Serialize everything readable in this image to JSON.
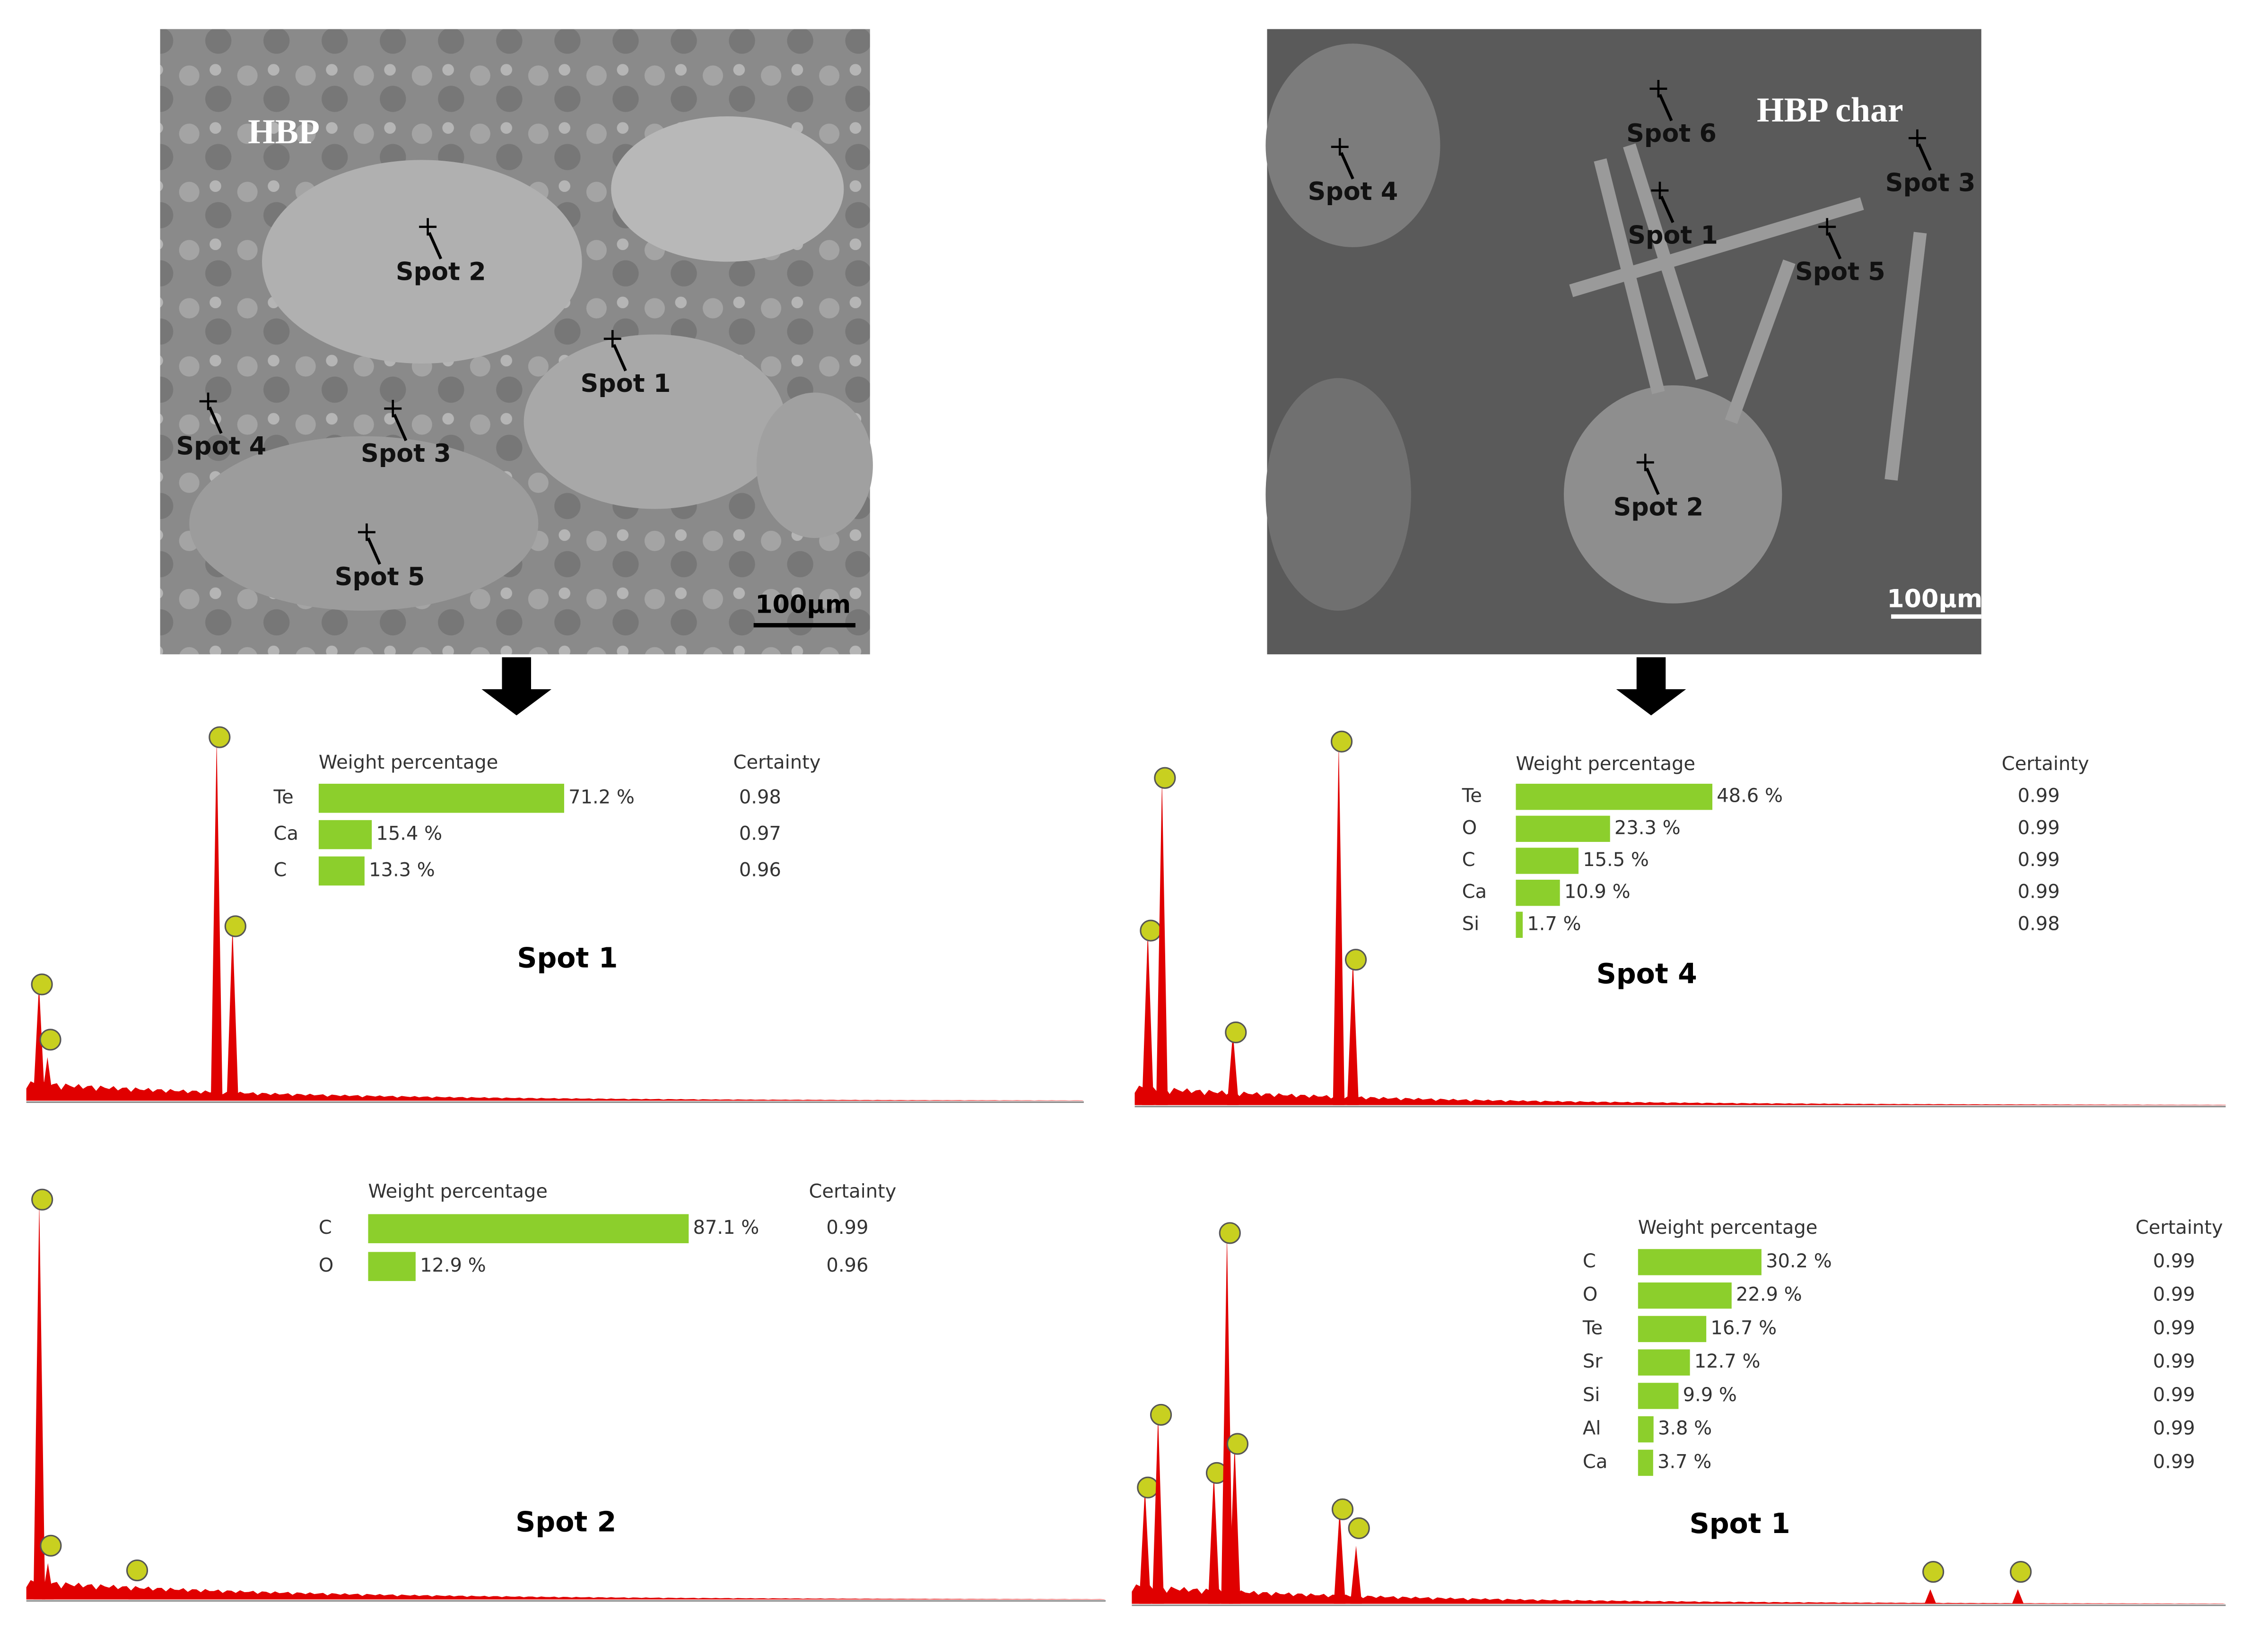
{
  "images": [
    {
      "label": "HBP",
      "scale": "100µm",
      "spots": [
        "Spot 1",
        "Spot 2",
        "Spot 3",
        "Spot 4",
        "Spot 5"
      ]
    },
    {
      "label": "HBP char",
      "scale": "100µm",
      "spots": [
        "Spot 1",
        "Spot 2",
        "Spot 3",
        "Spot 4",
        "Spot 5",
        "Spot 6"
      ]
    }
  ],
  "panels": [
    {
      "title": "Spot 1",
      "header": "Weight percentage",
      "certainty_header": "Certainty",
      "elements": [
        "Te",
        "Ca",
        "C"
      ],
      "values": [
        71.2,
        15.4,
        13.3
      ],
      "value_labels": [
        "71.2 %",
        "15.4 %",
        "13.3 %"
      ],
      "certainty": [
        0.98,
        0.97,
        0.96
      ]
    },
    {
      "title": "Spot 4",
      "header": "Weight percentage",
      "certainty_header": "Certainty",
      "elements": [
        "Te",
        "O",
        "C",
        "Ca",
        "Si"
      ],
      "values": [
        48.6,
        23.3,
        15.5,
        10.9,
        1.7
      ],
      "value_labels": [
        "48.6 %",
        "23.3 %",
        "15.5 %",
        "10.9 %",
        "1.7 %"
      ],
      "certainty": [
        0.99,
        0.99,
        0.99,
        0.99,
        0.98
      ]
    },
    {
      "title": "Spot 2",
      "header": "Weight percentage",
      "certainty_header": "Certainty",
      "elements": [
        "C",
        "O"
      ],
      "values": [
        87.1,
        12.9
      ],
      "value_labels": [
        "87.1 %",
        "12.9 %"
      ],
      "certainty": [
        0.99,
        0.96
      ]
    },
    {
      "title": "Spot 1",
      "header": "Weight percentage",
      "certainty_header": "Certainty",
      "elements": [
        "C",
        "O",
        "Te",
        "Sr",
        "Si",
        "Al",
        "Ca"
      ],
      "values": [
        30.2,
        22.9,
        16.7,
        12.7,
        9.9,
        3.8,
        3.7
      ],
      "value_labels": [
        "30.2 %",
        "22.9 %",
        "16.7 %",
        "12.7 %",
        "9.9 %",
        "3.8 %",
        "3.7 %"
      ],
      "certainty": [
        0.99,
        0.99,
        0.99,
        0.99,
        0.99,
        0.99,
        0.99
      ]
    }
  ]
}
